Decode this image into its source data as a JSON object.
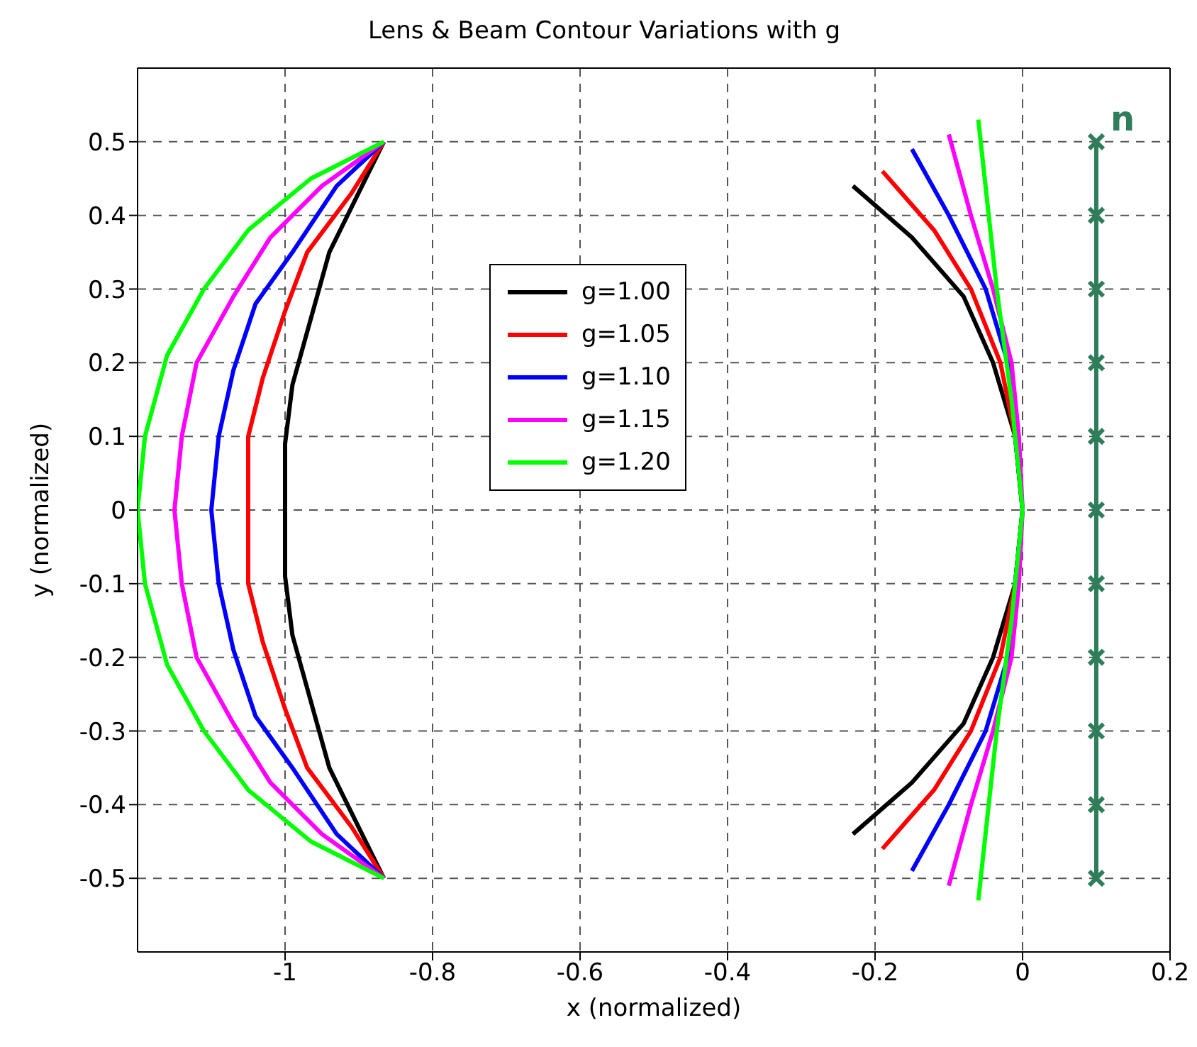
{
  "chart_data": {
    "type": "line",
    "title": "Lens & Beam Contour Variations with g",
    "xlabel": "x (normalized)",
    "ylabel": "y (normalized)",
    "xlim": [
      -1.2,
      0.2
    ],
    "xticks": [
      -1,
      -0.8,
      -0.6,
      -0.4,
      -0.2,
      0,
      0.2
    ],
    "ylim": [
      -0.6,
      0.6
    ],
    "yticks": [
      -0.5,
      -0.4,
      -0.3,
      -0.2,
      -0.1,
      0,
      0.1,
      0.2,
      0.3,
      0.4,
      0.5
    ],
    "grid": true,
    "legend": "top left",
    "marker": "none",
    "line_style": "solid",
    "annotations": [
      {
        "text": "n",
        "x": 0.1,
        "y": 0.5
      }
    ],
    "series": [
      {
        "name": "g=1.00",
        "color": "#000000",
        "x": [
          -0.866,
          -0.94,
          -0.99,
          -1.0,
          -1.0,
          -1.0,
          -0.99,
          -0.94,
          -0.866,
          null,
          -0.23,
          -0.15,
          -0.08,
          -0.04,
          -0.01,
          0,
          -0.01,
          -0.04,
          -0.08,
          -0.15,
          -0.23
        ],
        "values": [
          0.5,
          0.35,
          0.17,
          0.09,
          0,
          -0.09,
          -0.17,
          -0.35,
          -0.5,
          null,
          0.44,
          0.37,
          0.29,
          0.2,
          0.1,
          0,
          -0.1,
          -0.2,
          -0.29,
          -0.37,
          -0.44
        ]
      },
      {
        "name": "g=1.05",
        "color": "#ff0000",
        "x": [
          -0.866,
          -0.91,
          -0.97,
          -1.0,
          -1.03,
          -1.05,
          -1.05,
          -1.05,
          -1.03,
          -1.0,
          -0.97,
          -0.91,
          -0.866,
          null,
          -0.19,
          -0.12,
          -0.07,
          -0.03,
          -0.01,
          0,
          -0.01,
          -0.03,
          -0.07,
          -0.12,
          -0.19
        ],
        "values": [
          0.5,
          0.43,
          0.35,
          0.27,
          0.18,
          0.1,
          0,
          -0.1,
          -0.18,
          -0.27,
          -0.35,
          -0.43,
          -0.5,
          null,
          0.46,
          0.38,
          0.3,
          0.2,
          0.1,
          0,
          -0.1,
          -0.2,
          -0.3,
          -0.38,
          -0.46
        ]
      },
      {
        "name": "g=1.10",
        "color": "#0000ff",
        "x": [
          -0.866,
          -0.93,
          -0.99,
          -1.04,
          -1.07,
          -1.09,
          -1.1,
          -1.09,
          -1.07,
          -1.04,
          -0.99,
          -0.93,
          -0.866,
          null,
          -0.15,
          -0.1,
          -0.05,
          -0.02,
          -0.01,
          0,
          -0.01,
          -0.02,
          -0.05,
          -0.1,
          -0.15
        ],
        "values": [
          0.5,
          0.44,
          0.35,
          0.28,
          0.19,
          0.1,
          0,
          -0.1,
          -0.19,
          -0.28,
          -0.35,
          -0.44,
          -0.5,
          null,
          0.49,
          0.4,
          0.3,
          0.2,
          0.1,
          0,
          -0.1,
          -0.2,
          -0.3,
          -0.4,
          -0.49
        ]
      },
      {
        "name": "g=1.15",
        "color": "#ff00ff",
        "x": [
          -0.866,
          -0.95,
          -1.02,
          -1.07,
          -1.12,
          -1.14,
          -1.15,
          -1.14,
          -1.12,
          -1.07,
          -1.02,
          -0.95,
          -0.866,
          null,
          -0.1,
          -0.07,
          -0.04,
          -0.015,
          -0.005,
          0,
          -0.005,
          -0.015,
          -0.04,
          -0.07,
          -0.1
        ],
        "values": [
          0.5,
          0.44,
          0.37,
          0.29,
          0.2,
          0.1,
          0,
          -0.1,
          -0.2,
          -0.29,
          -0.37,
          -0.44,
          -0.5,
          null,
          0.51,
          0.4,
          0.3,
          0.2,
          0.1,
          0,
          -0.1,
          -0.2,
          -0.3,
          -0.4,
          -0.51
        ]
      },
      {
        "name": "g=1.20",
        "color": "#00ff00",
        "x": [
          -0.866,
          -0.965,
          -1.05,
          -1.11,
          -1.16,
          -1.19,
          -1.2,
          -1.19,
          -1.16,
          -1.11,
          -1.05,
          -0.965,
          -0.866,
          null,
          -0.06,
          -0.035,
          -0.015,
          0,
          -0.015,
          -0.035,
          -0.06
        ],
        "values": [
          0.5,
          0.45,
          0.38,
          0.3,
          0.21,
          0.1,
          0,
          -0.1,
          -0.21,
          -0.3,
          -0.38,
          -0.45,
          -0.5,
          null,
          0.53,
          0.3,
          0.15,
          0,
          -0.15,
          -0.3,
          -0.53
        ]
      },
      {
        "color": "#2e7d5b",
        "marker": "cross",
        "x": [
          0.1,
          0.1,
          0.1,
          0.1,
          0.1,
          0.1,
          0.1,
          0.1,
          0.1,
          0.1,
          0.1
        ],
        "values": [
          0.5,
          0.4,
          0.3,
          0.2,
          0.1,
          0,
          -0.1,
          -0.2,
          -0.3,
          -0.4,
          -0.5
        ]
      }
    ]
  }
}
